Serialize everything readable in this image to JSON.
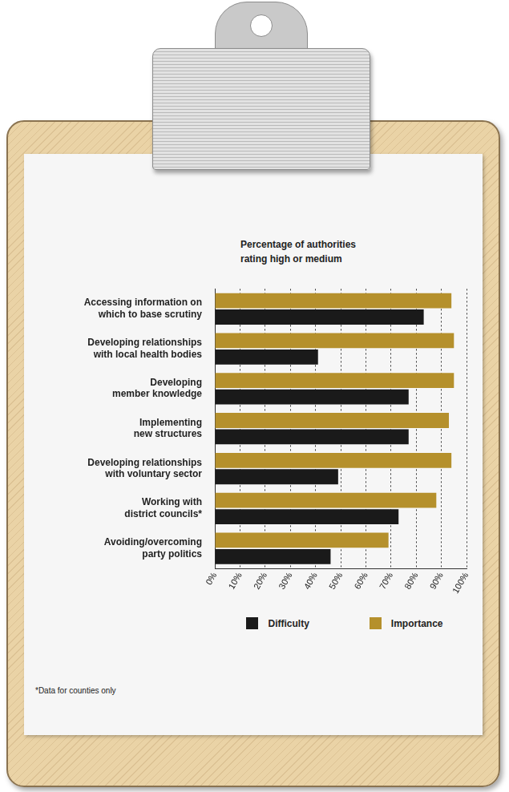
{
  "chart_data": {
    "type": "bar",
    "orientation": "horizontal",
    "title": "Percentage of authorities rating high or medium",
    "categories": [
      "Accessing information on which to base scrutiny",
      "Developing relationships with local health bodies",
      "Developing member knowledge",
      "Implementing new structures",
      "Developing relationships with voluntary sector",
      "Working with district councils*",
      "Avoiding/overcoming party politics"
    ],
    "series": [
      {
        "name": "Difficulty",
        "color": "#1a1a1a",
        "values": [
          83,
          41,
          77,
          77,
          49,
          73,
          46
        ]
      },
      {
        "name": "Importance",
        "color": "#b5902c",
        "values": [
          94,
          95,
          95,
          93,
          94,
          88,
          69
        ]
      }
    ],
    "xlim": [
      0,
      100
    ],
    "xticks": [
      {
        "value": 0,
        "label": "0%"
      },
      {
        "value": 10,
        "label": "10%"
      },
      {
        "value": 20,
        "label": "20%"
      },
      {
        "value": 30,
        "label": "30%"
      },
      {
        "value": 40,
        "label": "40%"
      },
      {
        "value": 50,
        "label": "50%"
      },
      {
        "value": 60,
        "label": "60%"
      },
      {
        "value": 70,
        "label": "70%"
      },
      {
        "value": 80,
        "label": "80%"
      },
      {
        "value": 90,
        "label": "90%"
      },
      {
        "value": 100,
        "label": "100%"
      }
    ],
    "grid": true,
    "legend": "bottom",
    "footnote": "*Data for counties only"
  }
}
